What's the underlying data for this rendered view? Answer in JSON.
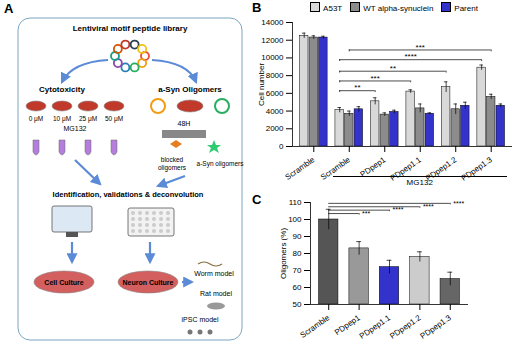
{
  "panels": {
    "A": {
      "label": "A",
      "title": "Lentiviral motif peptide library",
      "left_title": "Cytotoxicity",
      "right_title": "a-Syn Oligomers",
      "concentrations": [
        "0 μM",
        "10 μM",
        "25 μM",
        "50 μM"
      ],
      "treatment": "MG132",
      "time": "48H",
      "blocked_label": "blocked oligomers",
      "oligomer_label": "a-Syn oligomers",
      "pipeline": "Identification, validations & deconvolution",
      "models": [
        "Cell Culture",
        "Neuron Culture",
        "Worm model",
        "Rat model",
        "iPSC model"
      ]
    },
    "B": {
      "label": "B"
    },
    "C": {
      "label": "C"
    }
  },
  "chart_data": [
    {
      "type": "bar",
      "y_label": "Cell number",
      "categories": [
        "Scramble",
        "Scramble",
        "PDpep1",
        "PDpep1.1",
        "PDpep1.2",
        "PDpep1.3"
      ],
      "series": [
        {
          "name": "A53T",
          "color": "#d9d9d9",
          "values": [
            12500,
            4100,
            5100,
            6200,
            6700,
            8900
          ],
          "errors": [
            300,
            300,
            400,
            200,
            600,
            300
          ]
        },
        {
          "name": "WT alpha-synuclein",
          "color": "#8c8c8c",
          "values": [
            12300,
            3700,
            3600,
            4300,
            4200,
            5600
          ],
          "errors": [
            200,
            300,
            200,
            500,
            600,
            300
          ]
        },
        {
          "name": "Parent",
          "color": "#3333cc",
          "values": [
            12300,
            4200,
            3900,
            3700,
            4600,
            4600
          ],
          "errors": [
            150,
            300,
            200,
            100,
            400,
            200
          ]
        }
      ],
      "ylim": [
        0,
        14000
      ],
      "yticks": [
        0,
        2000,
        4000,
        6000,
        8000,
        10000,
        12000,
        14000
      ],
      "legend": "top",
      "annotations": [
        {
          "text": "MG132",
          "from": 1,
          "to": 5
        }
      ],
      "significance": [
        {
          "from": 1,
          "to": 2,
          "series": "A53T",
          "y": 6300,
          "label": "**"
        },
        {
          "from": 1,
          "to": 3,
          "series": "A53T",
          "y": 7400,
          "label": "***"
        },
        {
          "from": 1,
          "to": 4,
          "series": "A53T",
          "y": 8500,
          "label": "**"
        },
        {
          "from": 1,
          "to": 5,
          "series": "A53T",
          "y": 9800,
          "label": "****"
        },
        {
          "from": 1,
          "to": 5,
          "series": "WT alpha-synuclein",
          "y": 10900,
          "label": "***"
        }
      ]
    },
    {
      "type": "bar",
      "y_label": "Oligomers (%)",
      "categories": [
        "Scramble",
        "PDpep1",
        "PDpep1.1",
        "PDpep1.2",
        "PDpep1.3"
      ],
      "values": [
        100,
        83,
        72,
        78,
        65
      ],
      "errors": [
        6,
        4,
        4,
        3,
        4
      ],
      "colors": [
        "#555555",
        "#999999",
        "#3333cc",
        "#cccccc",
        "#666666"
      ],
      "ylim": [
        50,
        110
      ],
      "yticks": [
        50,
        60,
        70,
        80,
        90,
        100,
        110
      ],
      "significance": [
        {
          "from": 0,
          "to": 1,
          "y": 103.5,
          "label": "***"
        },
        {
          "from": 0,
          "to": 2,
          "y": 105.5,
          "label": "****"
        },
        {
          "from": 0,
          "to": 3,
          "y": 107.5,
          "label": "****"
        },
        {
          "from": 0,
          "to": 4,
          "y": 109.5,
          "label": "****"
        }
      ]
    }
  ]
}
